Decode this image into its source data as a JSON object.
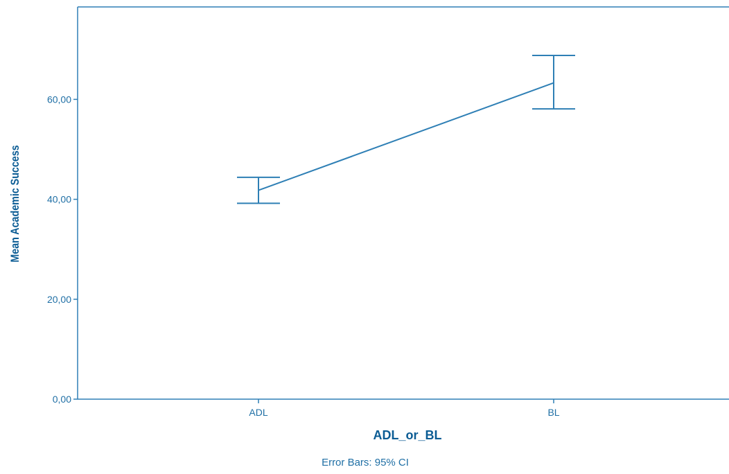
{
  "chart_data": {
    "type": "line",
    "title": "",
    "xlabel": "ADL_or_BL",
    "ylabel": "Mean Academic Success",
    "footnote": "Error Bars: 95% CI",
    "categories": [
      "ADL",
      "BL"
    ],
    "series": [
      {
        "values": [
          41.8,
          63.3
        ],
        "ci_lower": [
          39.2,
          58.1
        ],
        "ci_upper": [
          44.4,
          68.8
        ]
      }
    ],
    "ylim": [
      0,
      78.5
    ],
    "yticks": [
      0,
      20,
      40,
      60
    ],
    "ytick_labels": [
      "0,00",
      "20,00",
      "40,00",
      "60,00"
    ],
    "grid": false,
    "legend": "none",
    "colors": {
      "line": "#2e7fb5",
      "axis": "#2e7fb5",
      "axis_text": "#1f6fa5",
      "label_text": "#0b5c94"
    }
  }
}
